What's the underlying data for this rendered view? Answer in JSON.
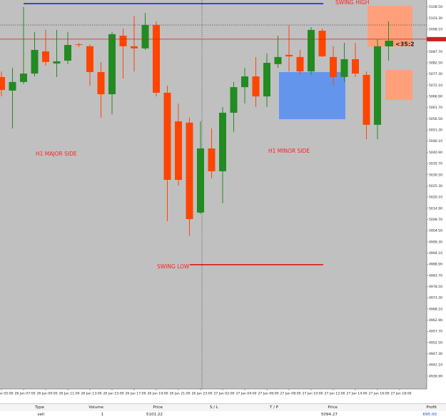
{
  "chart_data": {
    "type": "candlestick",
    "categories": [
      "26 Jan 05:00",
      null,
      "26 Jan 07:00",
      null,
      "26 Jan 09:00",
      null,
      "26 Jan 11:00",
      null,
      "26 Jan 13:00",
      null,
      "26 Jan 15:00",
      null,
      "26 Jan 17:00",
      null,
      "26 Jan 19:00",
      null,
      "26 Jan 21:00",
      null,
      "26 Jan 23:00",
      null,
      "27 Jan 02:00",
      null,
      "27 Jan 04:00",
      null,
      "27 Jan 06:00",
      null,
      "27 Jan 08:00",
      null,
      "27 Jan 10:00",
      null,
      "27 Jan 12:00",
      null,
      "27 Jan 14:00",
      null,
      "27 Jan 16:00",
      null,
      "27 Jan 18:00"
    ],
    "open": [
      5075.9,
      5069.6,
      5073.6,
      5077.5,
      5087.8,
      5082.2,
      5083.5,
      5091.1,
      5090.2,
      5078.2,
      5067.9,
      5095.1,
      5090.2,
      5089.2,
      5100.1,
      5068.6,
      5055.3,
      5054.7,
      5012.9,
      5042.7,
      5032.1,
      5059.3,
      5071.2,
      5076.2,
      5066.9,
      5081.9,
      5086.2,
      5085.2,
      5078.5,
      5097.4,
      5085.2,
      5075.9,
      5084.2,
      5076.9,
      5053.7,
      5090.2,
      null
    ],
    "high": [
      5078.5,
      5080.2,
      5108.4,
      5096.8,
      5097.8,
      5097.8,
      5096.8,
      5091.8,
      5091.1,
      5082.9,
      5096.8,
      5098.4,
      5104.4,
      5105.7,
      5101.8,
      5071.9,
      5063.6,
      5057.0,
      5055.3,
      5052.0,
      5062.0,
      5073.6,
      5080.2,
      5085.2,
      5086.8,
      5095.1,
      5100.1,
      5088.5,
      5099.1,
      5098.4,
      5090.2,
      5091.8,
      5091.8,
      5078.5,
      5093.5,
      5101.8,
      null
    ],
    "low": [
      5066.9,
      5052.0,
      5072.6,
      5076.2,
      5081.2,
      5075.9,
      5081.9,
      5089.8,
      5071.9,
      5057.0,
      5058.6,
      5075.2,
      5078.5,
      5088.5,
      5066.9,
      5008.9,
      5025.5,
      5002.2,
      5012.2,
      5028.8,
      5017.2,
      5050.3,
      5063.6,
      5062.0,
      5062.0,
      5080.2,
      5078.5,
      5076.9,
      5076.9,
      5085.2,
      5071.9,
      5073.6,
      5075.9,
      5047.0,
      5047.0,
      5083.5,
      null
    ],
    "close": [
      5069.9,
      5073.6,
      5077.5,
      5088.5,
      5082.9,
      5083.2,
      5090.8,
      5090.8,
      5078.2,
      5067.9,
      5095.8,
      5090.2,
      5089.2,
      5100.1,
      5068.6,
      5028.1,
      5028.1,
      5009.9,
      5042.7,
      5032.1,
      5059.3,
      5071.2,
      5076.2,
      5066.9,
      5082.5,
      5085.2,
      5085.5,
      5078.5,
      5097.8,
      5085.5,
      5075.9,
      5084.2,
      5077.5,
      5053.7,
      5090.2,
      5092.8,
      null
    ],
    "up_color": "#228b22",
    "down_color": "#ff4500",
    "ylim": [
      4930.9,
      5111.7
    ],
    "yticks": [
      {
        "value": 4936.9,
        "label": "4936.90"
      },
      {
        "value": 4942.1,
        "label": "4942.10"
      },
      {
        "value": 4947.3,
        "label": "4947.30"
      },
      {
        "value": 4952.5,
        "label": "4952.50"
      },
      {
        "value": 4957.7,
        "label": "4957.70"
      },
      {
        "value": 4962.9,
        "label": "4962.90"
      },
      {
        "value": 4968.1,
        "label": "4968.10"
      },
      {
        "value": 4973.3,
        "label": "4973.30"
      },
      {
        "value": 4978.5,
        "label": "4978.50"
      },
      {
        "value": 4983.7,
        "label": "4983.70"
      },
      {
        "value": 4988.9,
        "label": "4988.90"
      },
      {
        "value": 4994.1,
        "label": "4994.10"
      },
      {
        "value": 4999.3,
        "label": "4999.30"
      },
      {
        "value": 5004.5,
        "label": "5004.50"
      },
      {
        "value": 5009.7,
        "label": "5009.70"
      },
      {
        "value": 5014.9,
        "label": "5014.90"
      },
      {
        "value": 5020.1,
        "label": "5020.10"
      },
      {
        "value": 5025.3,
        "label": "5025.30"
      },
      {
        "value": 5030.5,
        "label": "5030.50"
      },
      {
        "value": 5035.7,
        "label": "5035.70"
      },
      {
        "value": 5040.9,
        "label": "5040.90"
      },
      {
        "value": 5046.1,
        "label": "5046.10"
      },
      {
        "value": 5051.3,
        "label": "5051.30"
      },
      {
        "value": 5056.5,
        "label": "5056.50"
      },
      {
        "value": 5061.7,
        "label": "5061.70"
      },
      {
        "value": 5066.9,
        "label": "5066.90"
      },
      {
        "value": 5072.1,
        "label": "5072.10"
      },
      {
        "value": 5077.3,
        "label": "5077.30"
      },
      {
        "value": 5082.5,
        "label": "5082.50"
      },
      {
        "value": 5087.7,
        "label": "5087.70"
      },
      {
        "value": 5092.9,
        "label": "5092.90"
      },
      {
        "value": 5098.1,
        "label": "5098.10"
      },
      {
        "value": 5103.3,
        "label": "5103.30"
      },
      {
        "value": 5108.5,
        "label": "5108.50"
      }
    ],
    "annotations": [
      {
        "text": "SWING HIGH",
        "value": 5110.0,
        "color": "#1a1adc"
      },
      {
        "text": "SWING LOW",
        "value": 4988.7,
        "color": "#e01818"
      }
    ],
    "notes": [
      "H1 MAJOR SIDE",
      "H1 MINOR SIDE"
    ],
    "bid": 5093.5,
    "timer": "<35:2"
  },
  "trade_table": {
    "headers": [
      "Type",
      "Volume",
      "Price",
      "S / L",
      "T / P",
      "Price",
      "Profit"
    ],
    "rows": [
      [
        "sell",
        "1",
        "5101.22",
        null,
        null,
        "5094.27",
        "695.00"
      ]
    ]
  }
}
